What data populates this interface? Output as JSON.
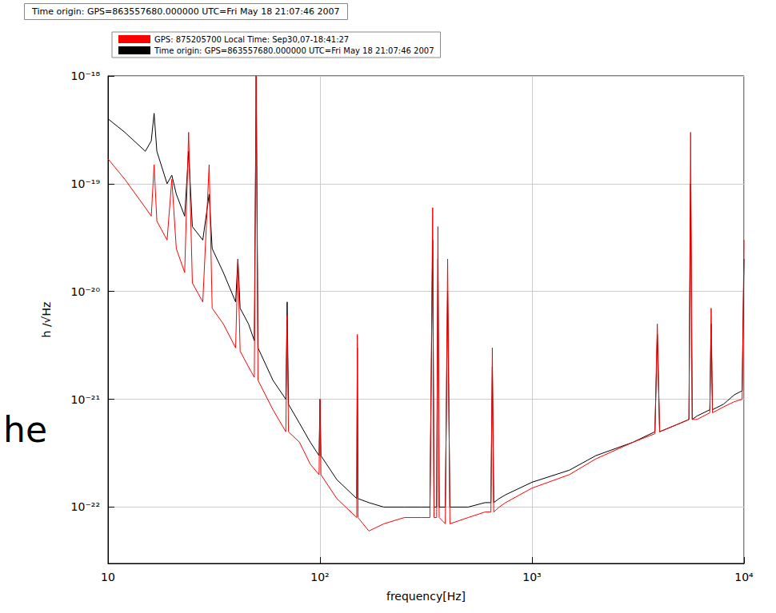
{
  "chart_data": {
    "type": "line",
    "title": "Time origin: GPS=863557680.000000 UTC=Fri May 18 21:07:46 2007",
    "xlabel": "frequency[Hz]",
    "ylabel": "h /√Hz",
    "annotations": [
      "he"
    ],
    "log": true,
    "grid": true,
    "legend": "top",
    "xlim": [
      10,
      10000
    ],
    "ylim": [
      3e-23,
      1e-18
    ],
    "xticks": [
      10,
      {
        "value": 100,
        "label": "10²"
      },
      {
        "value": 1000,
        "label": "10³"
      },
      {
        "value": 10000,
        "label": "10⁴"
      }
    ],
    "yticks": [
      {
        "value": 1e-22,
        "label": "10⁻²²"
      },
      {
        "value": 1e-21,
        "label": "10⁻²¹"
      },
      {
        "value": 1e-20,
        "label": "10⁻²⁰"
      },
      {
        "value": 1e-19,
        "label": "10⁻¹⁹"
      },
      {
        "value": 1e-18,
        "label": "10⁻¹⁸"
      }
    ],
    "x": [
      10,
      12,
      15,
      16,
      16.5,
      17,
      19,
      20,
      21,
      23,
      24,
      25,
      28,
      30,
      31,
      35,
      40,
      41,
      42,
      46,
      49,
      50,
      51,
      60,
      69,
      70,
      71,
      80,
      90,
      99,
      100,
      101,
      120,
      149,
      150,
      151,
      170,
      200,
      250,
      300,
      330,
      340,
      345,
      355,
      360,
      365,
      390,
      400,
      410,
      500,
      600,
      640,
      650,
      660,
      700,
      750,
      1000,
      1500,
      2000,
      3000,
      3800,
      3900,
      4000,
      5000,
      5500,
      5600,
      5700,
      6000,
      6900,
      7000,
      7100,
      8000,
      9000,
      9800,
      10000
    ],
    "series": [
      {
        "name": "Time origin: GPS=863557680.000000 UTC=Fri May 18 21:07:46 2007",
        "color": "#000000",
        "values": [
          4e-19,
          3e-19,
          2e-19,
          2.5e-19,
          4.5e-19,
          2e-19,
          1e-19,
          1.2e-19,
          8e-20,
          5e-20,
          2e-19,
          4e-20,
          3e-20,
          8e-20,
          2.5e-20,
          1.5e-20,
          8e-21,
          2e-20,
          7e-21,
          5e-21,
          3.5e-21,
          1e-18,
          3e-21,
          1.5e-21,
          1e-21,
          8e-21,
          9e-22,
          6e-22,
          4e-22,
          3e-22,
          1e-21,
          3e-22,
          1.8e-22,
          1.2e-22,
          3e-21,
          1.2e-22,
          1.1e-22,
          1e-22,
          1e-22,
          1e-22,
          1e-22,
          3e-20,
          1e-22,
          1e-22,
          2e-20,
          1e-22,
          1e-22,
          1e-20,
          1e-22,
          1e-22,
          1.1e-22,
          1.1e-22,
          2e-21,
          1.1e-22,
          1.2e-22,
          1.3e-22,
          1.7e-22,
          2.2e-22,
          3e-22,
          4e-22,
          5e-22,
          4e-21,
          5e-22,
          6e-22,
          6.5e-22,
          1e-19,
          6.5e-22,
          7e-22,
          8e-22,
          5e-21,
          8e-22,
          9e-22,
          1.1e-21,
          1.2e-21,
          2e-20
        ]
      },
      {
        "name": "GPS: 875205700 Local Time: Sep30,07-18:41:27",
        "color": "#ff0000",
        "values": [
          1.7e-19,
          1.1e-19,
          6e-20,
          5e-20,
          1.5e-19,
          4.5e-20,
          3e-20,
          1.1e-19,
          2.5e-20,
          1.5e-20,
          3e-19,
          1.2e-20,
          8e-21,
          1.5e-19,
          7e-21,
          5e-21,
          3e-21,
          2e-20,
          2.8e-21,
          2e-21,
          1.6e-21,
          1e-18,
          1.5e-21,
          8e-22,
          5e-22,
          6e-21,
          5e-22,
          4e-22,
          2.5e-22,
          2e-22,
          1e-21,
          2e-22,
          1.2e-22,
          8e-23,
          4e-21,
          8e-23,
          6e-23,
          7e-23,
          8e-23,
          8e-23,
          8e-23,
          6e-20,
          8e-23,
          8e-23,
          4e-20,
          8e-23,
          7e-23,
          2e-20,
          7e-23,
          8e-23,
          9e-23,
          9e-23,
          3e-21,
          9e-23,
          1e-22,
          1.1e-22,
          1.5e-22,
          2e-22,
          2.8e-22,
          4e-22,
          4.8e-22,
          5e-21,
          5e-22,
          6e-22,
          6.5e-22,
          3e-19,
          6.5e-22,
          6.5e-22,
          7.5e-22,
          7e-21,
          7.5e-22,
          8.5e-22,
          9.5e-22,
          1e-21,
          3e-20
        ]
      }
    ]
  }
}
